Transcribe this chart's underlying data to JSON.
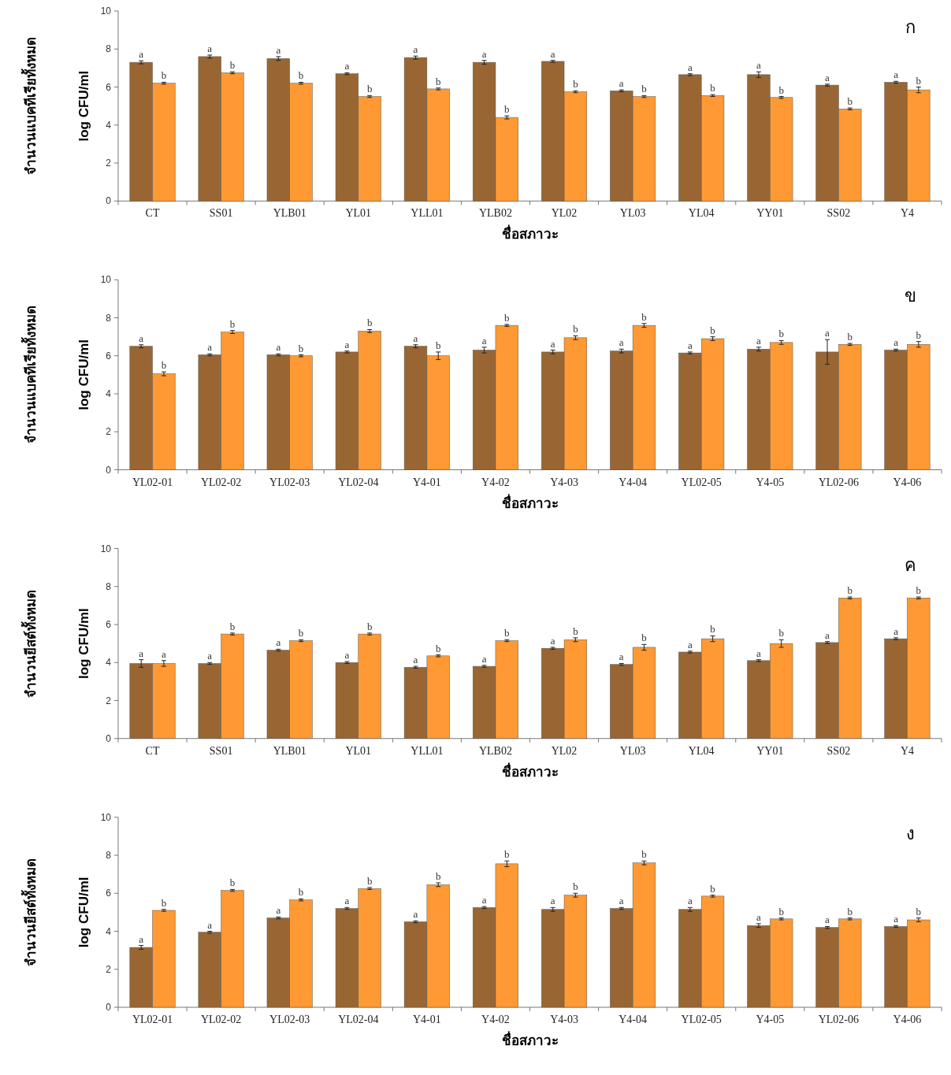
{
  "chart_data": [
    {
      "type": "bar",
      "title": "ก",
      "xlabel": "ชื่อสภาวะ",
      "ylabel": "log CFU/ml",
      "annotations": [
        "จำนวนแบคทีเรียทั้งหมด"
      ],
      "ylim": [
        0,
        10
      ],
      "yticks": [
        0,
        2,
        4,
        6,
        8,
        10
      ],
      "categories": [
        "CT",
        "SS01",
        "YLB01",
        "YL01",
        "YLL01",
        "YLB02",
        "YL02",
        "YL03",
        "YL04",
        "YY01",
        "SS02",
        "Y4"
      ],
      "series": [
        {
          "color": "#996633",
          "values": [
            7.3,
            7.6,
            7.5,
            6.7,
            7.55,
            7.3,
            7.35,
            5.8,
            6.65,
            6.65,
            6.1,
            6.25
          ],
          "errors": [
            0.08,
            0.08,
            0.1,
            0.05,
            0.08,
            0.1,
            0.05,
            0.05,
            0.05,
            0.15,
            0.05,
            0.05
          ],
          "value_labels": [
            "a",
            "a",
            "a",
            "a",
            "a",
            "a",
            "a",
            "a",
            "a",
            "a",
            "a",
            "a"
          ]
        },
        {
          "color": "#ff9933",
          "values": [
            6.2,
            6.75,
            6.2,
            5.5,
            5.9,
            4.4,
            5.75,
            5.5,
            5.55,
            5.45,
            4.85,
            5.85
          ],
          "errors": [
            0.05,
            0.05,
            0.05,
            0.05,
            0.05,
            0.08,
            0.05,
            0.05,
            0.05,
            0.05,
            0.05,
            0.15
          ],
          "value_labels": [
            "b",
            "b",
            "b",
            "b",
            "b",
            "b",
            "b",
            "b",
            "b",
            "b",
            "b",
            "b"
          ]
        }
      ]
    },
    {
      "type": "bar",
      "title": "ข",
      "xlabel": "ชื่อสภาวะ",
      "ylabel": "log CFU/ml",
      "annotations": [
        "จำนวนแบคทีเรียทั้งหมด"
      ],
      "ylim": [
        0,
        10
      ],
      "yticks": [
        0,
        2,
        4,
        6,
        8,
        10
      ],
      "categories": [
        "YL02-01",
        "YL02-02",
        "YL02-03",
        "YL02-04",
        "Y4-01",
        "Y4-02",
        "Y4-03",
        "Y4-04",
        "YL02-05",
        "Y4-05",
        "YL02-06",
        "Y4-06"
      ],
      "series": [
        {
          "color": "#996633",
          "values": [
            6.5,
            6.05,
            6.05,
            6.2,
            6.5,
            6.3,
            6.2,
            6.25,
            6.15,
            6.35,
            6.2,
            6.3
          ],
          "errors": [
            0.08,
            0.05,
            0.05,
            0.05,
            0.08,
            0.15,
            0.1,
            0.1,
            0.05,
            0.1,
            0.65,
            0.05
          ],
          "value_labels": [
            "a",
            "a",
            "a",
            "a",
            "a",
            "a",
            "a",
            "a",
            "a",
            "a",
            "a",
            "a"
          ]
        },
        {
          "color": "#ff9933",
          "values": [
            5.05,
            7.25,
            6.0,
            7.3,
            6.0,
            7.6,
            6.95,
            7.6,
            6.9,
            6.7,
            6.6,
            6.6
          ],
          "errors": [
            0.1,
            0.08,
            0.05,
            0.08,
            0.2,
            0.05,
            0.1,
            0.1,
            0.1,
            0.1,
            0.05,
            0.15
          ],
          "value_labels": [
            "b",
            "b",
            "b",
            "b",
            "b",
            "b",
            "b",
            "b",
            "b",
            "b",
            "b",
            "b"
          ]
        }
      ]
    },
    {
      "type": "bar",
      "title": "ค",
      "xlabel": "ชื่อสภาวะ",
      "ylabel": "log CFU/ml",
      "annotations": [
        "จำนวนยีสต์ทั้งหมด"
      ],
      "ylim": [
        0,
        10
      ],
      "yticks": [
        0,
        2,
        4,
        6,
        8,
        10
      ],
      "categories": [
        "CT",
        "SS01",
        "YLB01",
        "YL01",
        "YLL01",
        "YLB02",
        "YL02",
        "YL03",
        "YL04",
        "YY01",
        "SS02",
        "Y4"
      ],
      "series": [
        {
          "color": "#996633",
          "values": [
            3.95,
            3.95,
            4.65,
            4.0,
            3.75,
            3.8,
            4.75,
            3.9,
            4.55,
            4.1,
            5.05,
            5.25
          ],
          "errors": [
            0.2,
            0.05,
            0.05,
            0.05,
            0.05,
            0.05,
            0.05,
            0.05,
            0.05,
            0.05,
            0.05,
            0.05
          ],
          "value_labels": [
            "a",
            "a",
            "a",
            "a",
            "a",
            "a",
            "a",
            "a",
            "a",
            "a",
            "a",
            "a"
          ]
        },
        {
          "color": "#ff9933",
          "values": [
            3.95,
            5.5,
            5.15,
            5.5,
            4.35,
            5.15,
            5.2,
            4.8,
            5.25,
            5.0,
            7.4,
            7.4
          ],
          "errors": [
            0.15,
            0.05,
            0.05,
            0.05,
            0.05,
            0.05,
            0.1,
            0.15,
            0.15,
            0.2,
            0.05,
            0.05
          ],
          "value_labels": [
            "a",
            "b",
            "b",
            "b",
            "b",
            "b",
            "b",
            "b",
            "b",
            "b",
            "b",
            "b"
          ]
        }
      ]
    },
    {
      "type": "bar",
      "title": "ง",
      "xlabel": "ชื่อสภาวะ",
      "ylabel": "log CFU/ml",
      "annotations": [
        "จำนวนยีสต์ทั้งหมด"
      ],
      "ylim": [
        0,
        10
      ],
      "yticks": [
        0,
        2,
        4,
        6,
        8,
        10
      ],
      "categories": [
        "YL02-01",
        "YL02-02",
        "YL02-03",
        "YL02-04",
        "Y4-01",
        "Y4-02",
        "Y4-03",
        "Y4-04",
        "YL02-05",
        "Y4-05",
        "YL02-06",
        "Y4-06"
      ],
      "series": [
        {
          "color": "#996633",
          "values": [
            3.15,
            3.95,
            4.7,
            5.2,
            4.5,
            5.25,
            5.15,
            5.2,
            5.15,
            4.3,
            4.2,
            4.25
          ],
          "errors": [
            0.1,
            0.05,
            0.05,
            0.05,
            0.05,
            0.05,
            0.1,
            0.05,
            0.1,
            0.1,
            0.05,
            0.05
          ],
          "value_labels": [
            "a",
            "a",
            "a",
            "a",
            "a",
            "a",
            "a",
            "a",
            "a",
            "a",
            "a",
            "a"
          ]
        },
        {
          "color": "#ff9933",
          "values": [
            5.1,
            6.15,
            5.65,
            6.25,
            6.45,
            7.55,
            5.9,
            7.6,
            5.85,
            4.65,
            4.65,
            4.6
          ],
          "errors": [
            0.05,
            0.05,
            0.05,
            0.05,
            0.1,
            0.15,
            0.1,
            0.1,
            0.05,
            0.05,
            0.05,
            0.1
          ],
          "value_labels": [
            "b",
            "b",
            "b",
            "b",
            "b",
            "b",
            "b",
            "b",
            "b",
            "b",
            "b",
            "b"
          ]
        }
      ]
    }
  ]
}
